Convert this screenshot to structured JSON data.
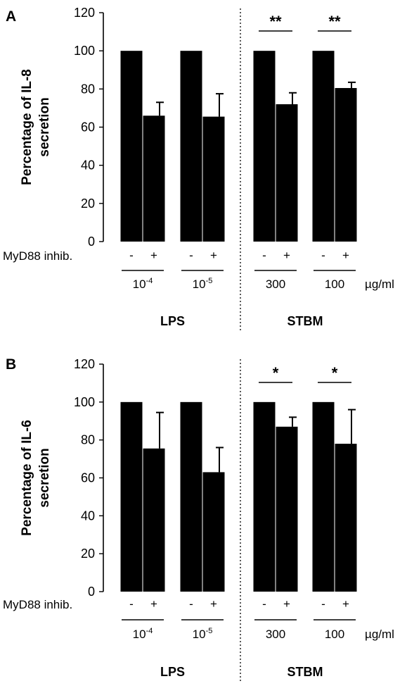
{
  "panels": [
    "A",
    "B"
  ],
  "row_label": "MyD88 inhib.",
  "unit_label": "µg/ml",
  "inhibitor_signs": [
    "-",
    "+",
    "-",
    "+",
    "-",
    "+",
    "-",
    "+"
  ],
  "dose_labels": [
    {
      "base": "10",
      "exp": "-4"
    },
    {
      "base": "10",
      "exp": "-5"
    },
    {
      "base": "300",
      "exp": ""
    },
    {
      "base": "100",
      "exp": ""
    }
  ],
  "treatment_groups": [
    "LPS",
    "STBM"
  ],
  "chart_data": [
    {
      "panel": "A",
      "type": "bar",
      "ylabel": "Percentage of IL-8 secretion",
      "ylim": [
        0,
        120
      ],
      "yticks": [
        0,
        20,
        40,
        60,
        80,
        100,
        120
      ],
      "values": [
        100,
        66,
        100,
        65.5,
        100,
        72,
        100,
        80.5
      ],
      "errors": [
        0,
        7,
        0,
        12,
        0,
        6,
        0,
        3
      ],
      "significance": [
        {
          "pair": [
            4,
            5
          ],
          "label": "**"
        },
        {
          "pair": [
            6,
            7
          ],
          "label": "**"
        }
      ]
    },
    {
      "panel": "B",
      "type": "bar",
      "ylabel": "Percentage of IL-6 secretion",
      "ylim": [
        0,
        120
      ],
      "yticks": [
        0,
        20,
        40,
        60,
        80,
        100,
        120
      ],
      "values": [
        100,
        75.5,
        100,
        63,
        100,
        87,
        100,
        78
      ],
      "errors": [
        0,
        19,
        0,
        13,
        0,
        5,
        0,
        18
      ],
      "significance": [
        {
          "pair": [
            4,
            5
          ],
          "label": "*"
        },
        {
          "pair": [
            6,
            7
          ],
          "label": "*"
        }
      ]
    }
  ]
}
